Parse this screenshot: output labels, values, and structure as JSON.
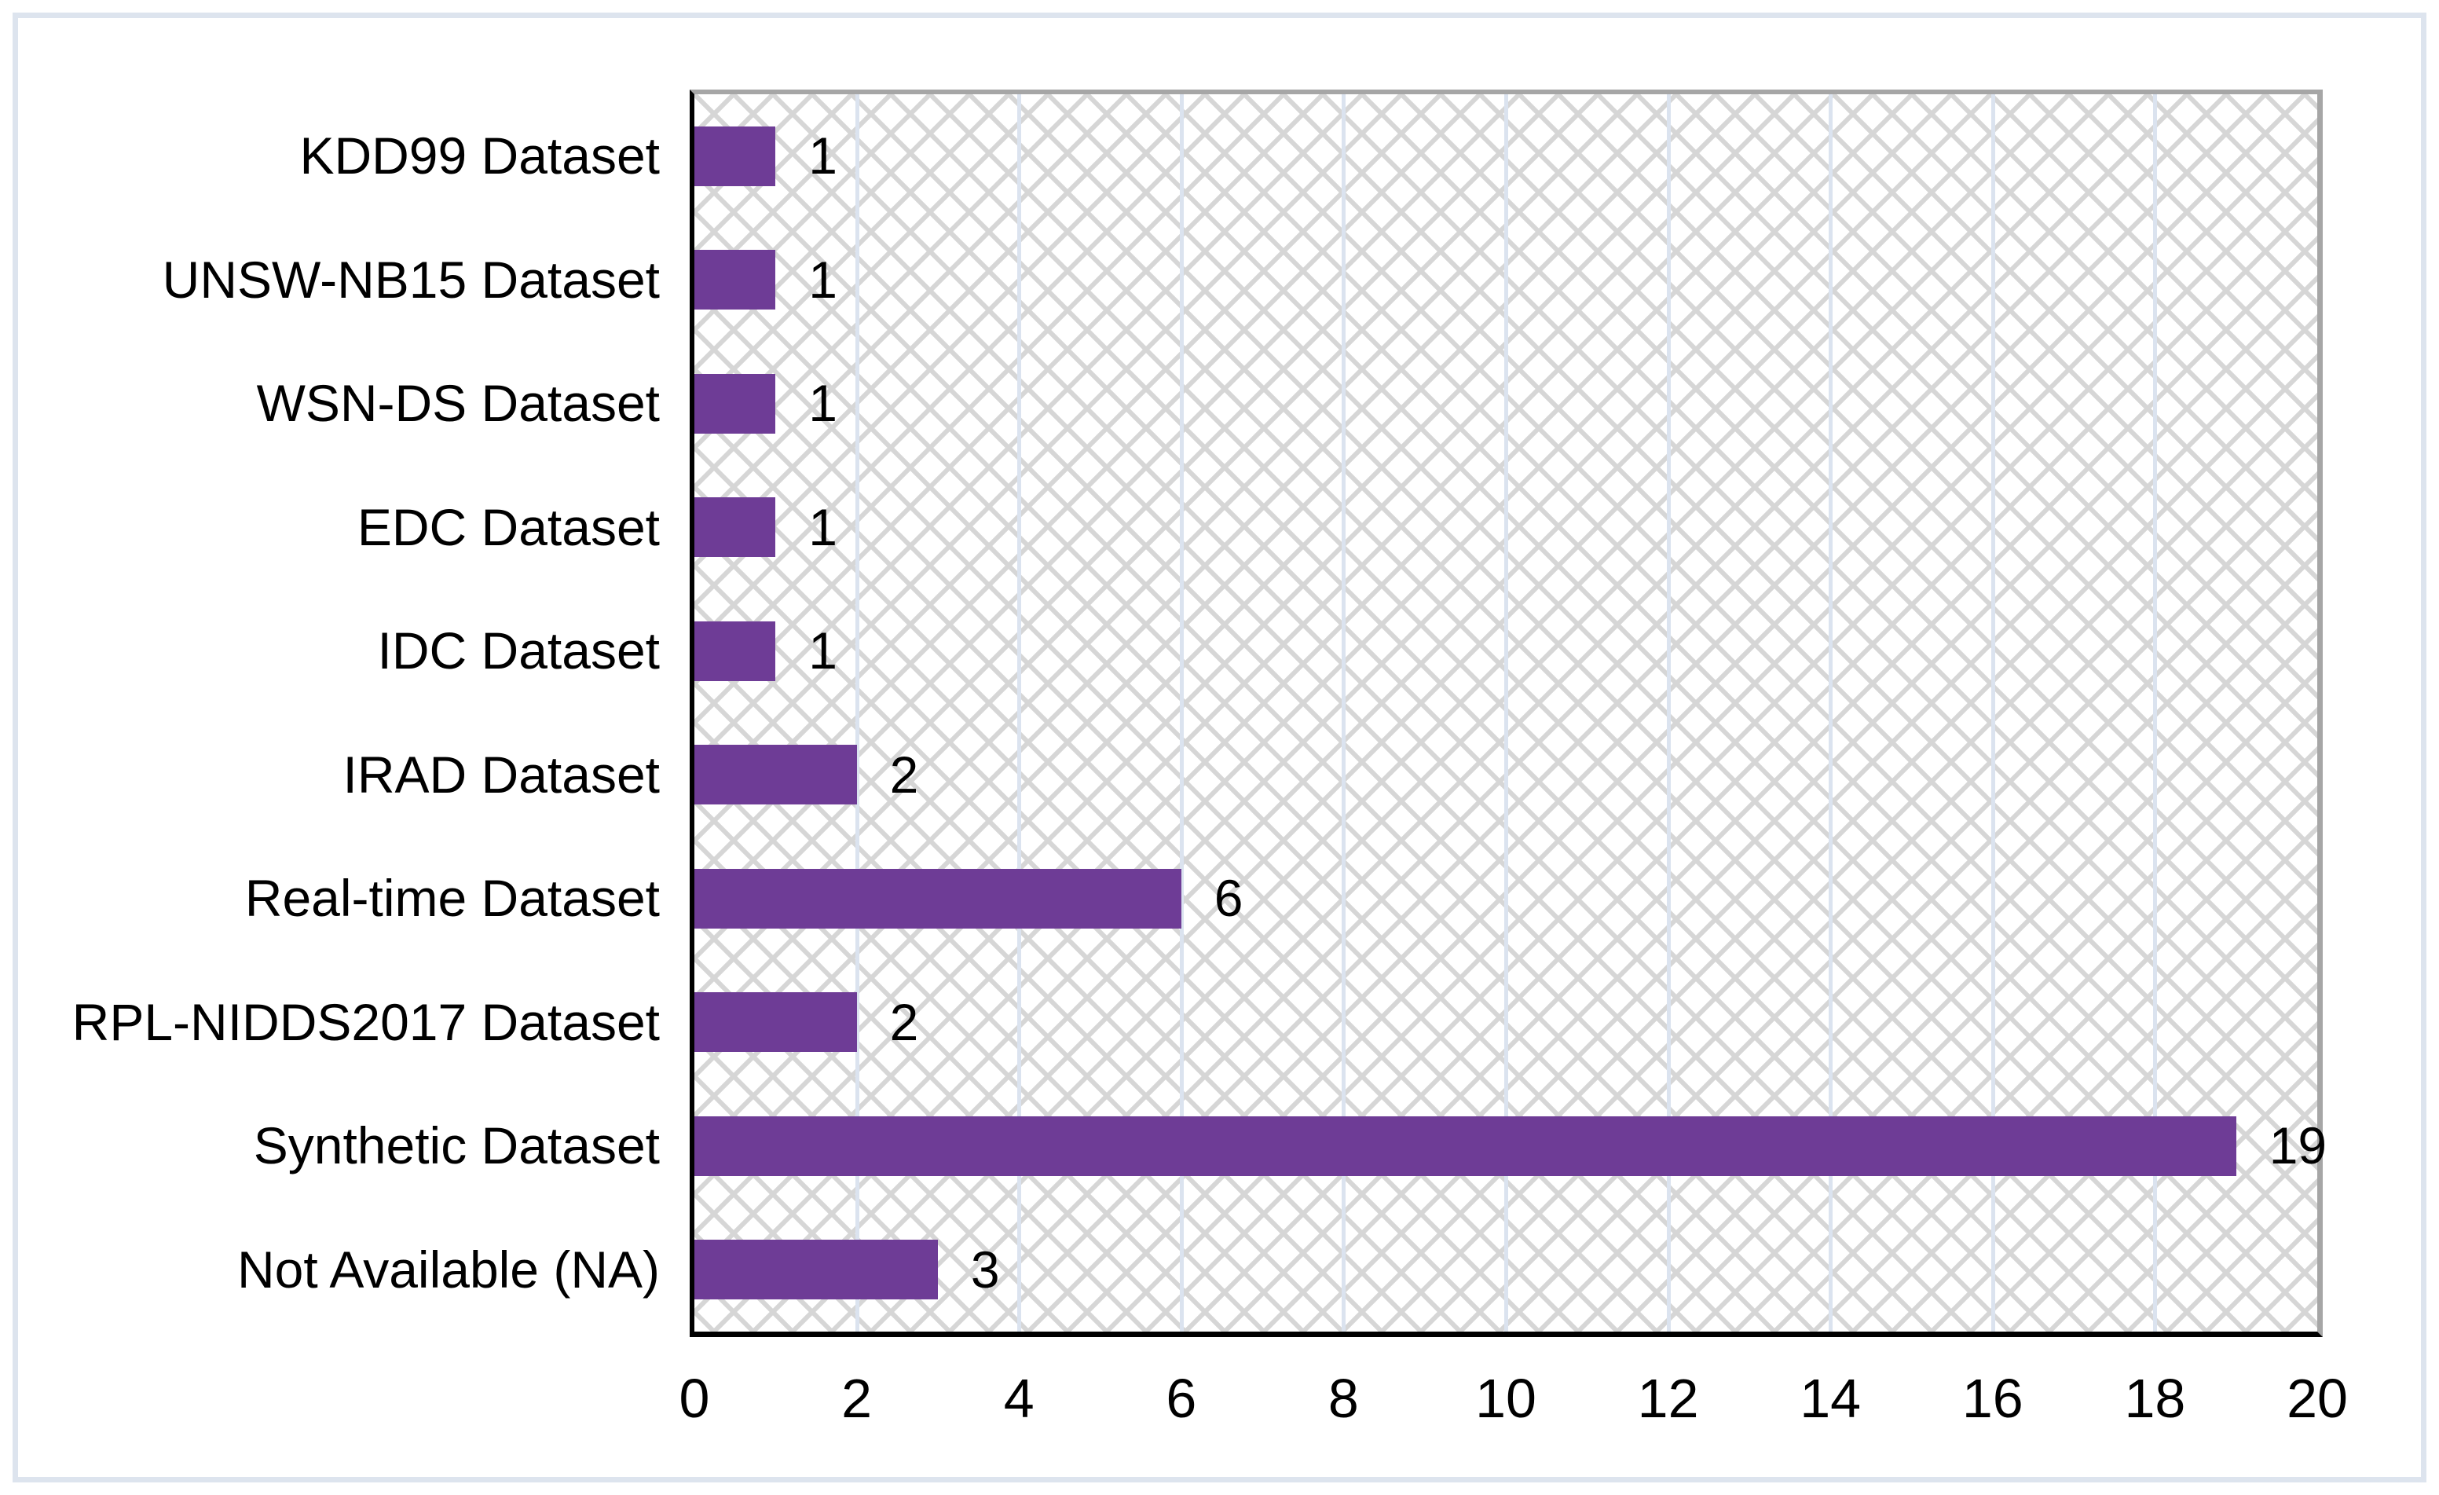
{
  "figure": {
    "background": "#ffffff",
    "frame_border_color": "#dde4ee"
  },
  "chart_data": {
    "type": "bar",
    "orientation": "horizontal",
    "title": "",
    "xlabel": "",
    "ylabel": "",
    "categories": [
      "KDD99 Dataset",
      "UNSW-NB15 Dataset",
      "WSN-DS Dataset",
      "EDC Dataset",
      "IDC Dataset",
      "IRAD Dataset",
      "Real-time Dataset",
      "RPL-NIDDS2017 Dataset",
      "Synthetic Dataset",
      "Not Available (NA)"
    ],
    "values": [
      1,
      1,
      1,
      1,
      1,
      2,
      6,
      2,
      19,
      3
    ],
    "data_labels": [
      "1",
      "1",
      "1",
      "1",
      "1",
      "2",
      "6",
      "2",
      "19",
      "3"
    ],
    "xlim": [
      0,
      20
    ],
    "x_ticks": [
      0,
      2,
      4,
      6,
      8,
      10,
      12,
      14,
      16,
      18,
      20
    ],
    "x_tick_labels": [
      "0",
      "2",
      "4",
      "6",
      "8",
      "10",
      "12",
      "14",
      "16",
      "18",
      "20"
    ],
    "grid": "vertical",
    "legend": "none",
    "bar_color": "#6e3c96",
    "gridline_color": "#dbe3ef",
    "axis_line_color": "#000000",
    "plot_border_color": "#a6a6a6",
    "plot_fill_pattern": "diagonal-crosshatch",
    "pattern_line_color": "#d6d6d6",
    "text_color": "#000000"
  }
}
